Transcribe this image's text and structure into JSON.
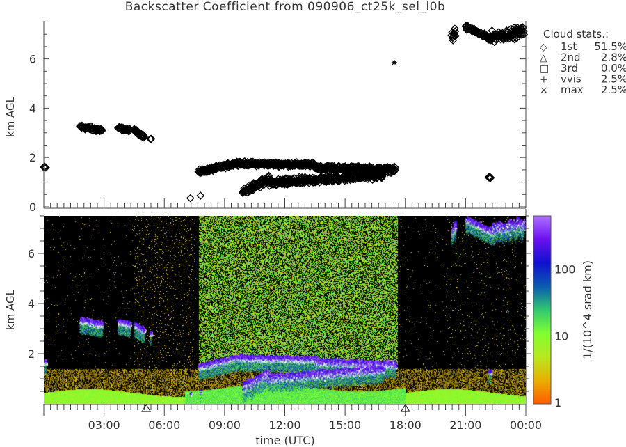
{
  "chart_data": [
    {
      "type": "scatter",
      "panel": "cloud-base",
      "title": "Backscatter Coefficient from 090906_ct25k_sel_l0b",
      "ylabel": "km AGL",
      "ylim": [
        0,
        7.5
      ],
      "yticks": [
        "0",
        "2",
        "4",
        "6"
      ],
      "xlim_hours_utc": [
        0,
        24
      ],
      "legend": {
        "placement": "right",
        "title": "Cloud stats.:",
        "entries": [
          {
            "symbol": "diamond",
            "glyph": "◇",
            "name": "1st",
            "value": "51.5%"
          },
          {
            "symbol": "triangle",
            "glyph": "△",
            "name": "2nd",
            "value": "2.8%"
          },
          {
            "symbol": "square",
            "glyph": "□",
            "name": "3rd",
            "value": "0.0%"
          },
          {
            "symbol": "plus",
            "glyph": "+",
            "name": "vvis",
            "value": "2.5%"
          },
          {
            "symbol": "x",
            "glyph": "×",
            "name": "max",
            "value": "2.5%"
          }
        ]
      },
      "first_cloud_base_segments": [
        {
          "t_start": 0.0,
          "t_end": 0.1,
          "km_start": 1.6,
          "km_end": 1.6,
          "spread": 0.05
        },
        {
          "t_start": 1.8,
          "t_end": 2.9,
          "km_start": 3.25,
          "km_end": 3.1,
          "spread": 0.12
        },
        {
          "t_start": 3.7,
          "t_end": 4.3,
          "km_start": 3.2,
          "km_end": 3.1,
          "spread": 0.08
        },
        {
          "t_start": 4.5,
          "t_end": 5.0,
          "km_start": 3.1,
          "km_end": 2.85,
          "spread": 0.1
        },
        {
          "t_start": 5.3,
          "t_end": 5.35,
          "km_start": 2.75,
          "km_end": 2.75,
          "spread": 0.02
        },
        {
          "t_start": 7.3,
          "t_end": 7.3,
          "km_start": 0.35,
          "km_end": 0.35,
          "spread": 0.0
        },
        {
          "t_start": 7.8,
          "t_end": 7.8,
          "km_start": 0.45,
          "km_end": 0.45,
          "spread": 0.02
        },
        {
          "t_start": 7.7,
          "t_end": 9.8,
          "km_start": 1.4,
          "km_end": 1.8,
          "spread": 0.12
        },
        {
          "t_start": 9.8,
          "t_end": 13.5,
          "km_start": 1.75,
          "km_end": 1.7,
          "spread": 0.12
        },
        {
          "t_start": 13.5,
          "t_end": 17.5,
          "km_start": 1.6,
          "km_end": 1.5,
          "spread": 0.15
        },
        {
          "t_start": 9.9,
          "t_end": 11.2,
          "km_start": 0.6,
          "km_end": 1.1,
          "spread": 0.25
        },
        {
          "t_start": 11.2,
          "t_end": 16.9,
          "km_start": 0.95,
          "km_end": 1.3,
          "spread": 0.2
        },
        {
          "t_start": 20.3,
          "t_end": 20.5,
          "km_start": 6.8,
          "km_end": 7.1,
          "spread": 0.3
        },
        {
          "t_start": 21.0,
          "t_end": 22.3,
          "km_start": 7.3,
          "km_end": 6.8,
          "spread": 0.12
        },
        {
          "t_start": 22.3,
          "t_end": 23.9,
          "km_start": 6.9,
          "km_end": 7.1,
          "spread": 0.3
        },
        {
          "t_start": 22.15,
          "t_end": 22.25,
          "km_start": 1.2,
          "km_end": 1.2,
          "spread": 0.03
        }
      ],
      "max_points": [
        {
          "t": 17.45,
          "km": 5.85
        }
      ],
      "second_cloud_markers_hours": [
        5.1,
        18.0
      ]
    },
    {
      "type": "heatmap",
      "panel": "backscatter",
      "ylabel": "km AGL",
      "ylim": [
        0,
        7.5
      ],
      "yticks": [
        "2",
        "4",
        "6"
      ],
      "xlabel": "time (UTC)",
      "xticks": [
        "03:00",
        "06:00",
        "09:00",
        "12:00",
        "15:00",
        "18:00",
        "21:00",
        "00:00"
      ],
      "colorbar": {
        "label": "1/(10^4 srad km)",
        "scale": "log",
        "range": [
          1,
          600
        ],
        "ticks": [
          "1",
          "10",
          "100"
        ],
        "colors": [
          "#ff5a00",
          "#e8b000",
          "#b8e820",
          "#80ff30",
          "#30c870",
          "#0a5ab0",
          "#1010d0",
          "#6a10f0",
          "#b070ff"
        ]
      },
      "background_color": "#000000",
      "noisy_period_hours": [
        7.7,
        17.6
      ]
    }
  ]
}
